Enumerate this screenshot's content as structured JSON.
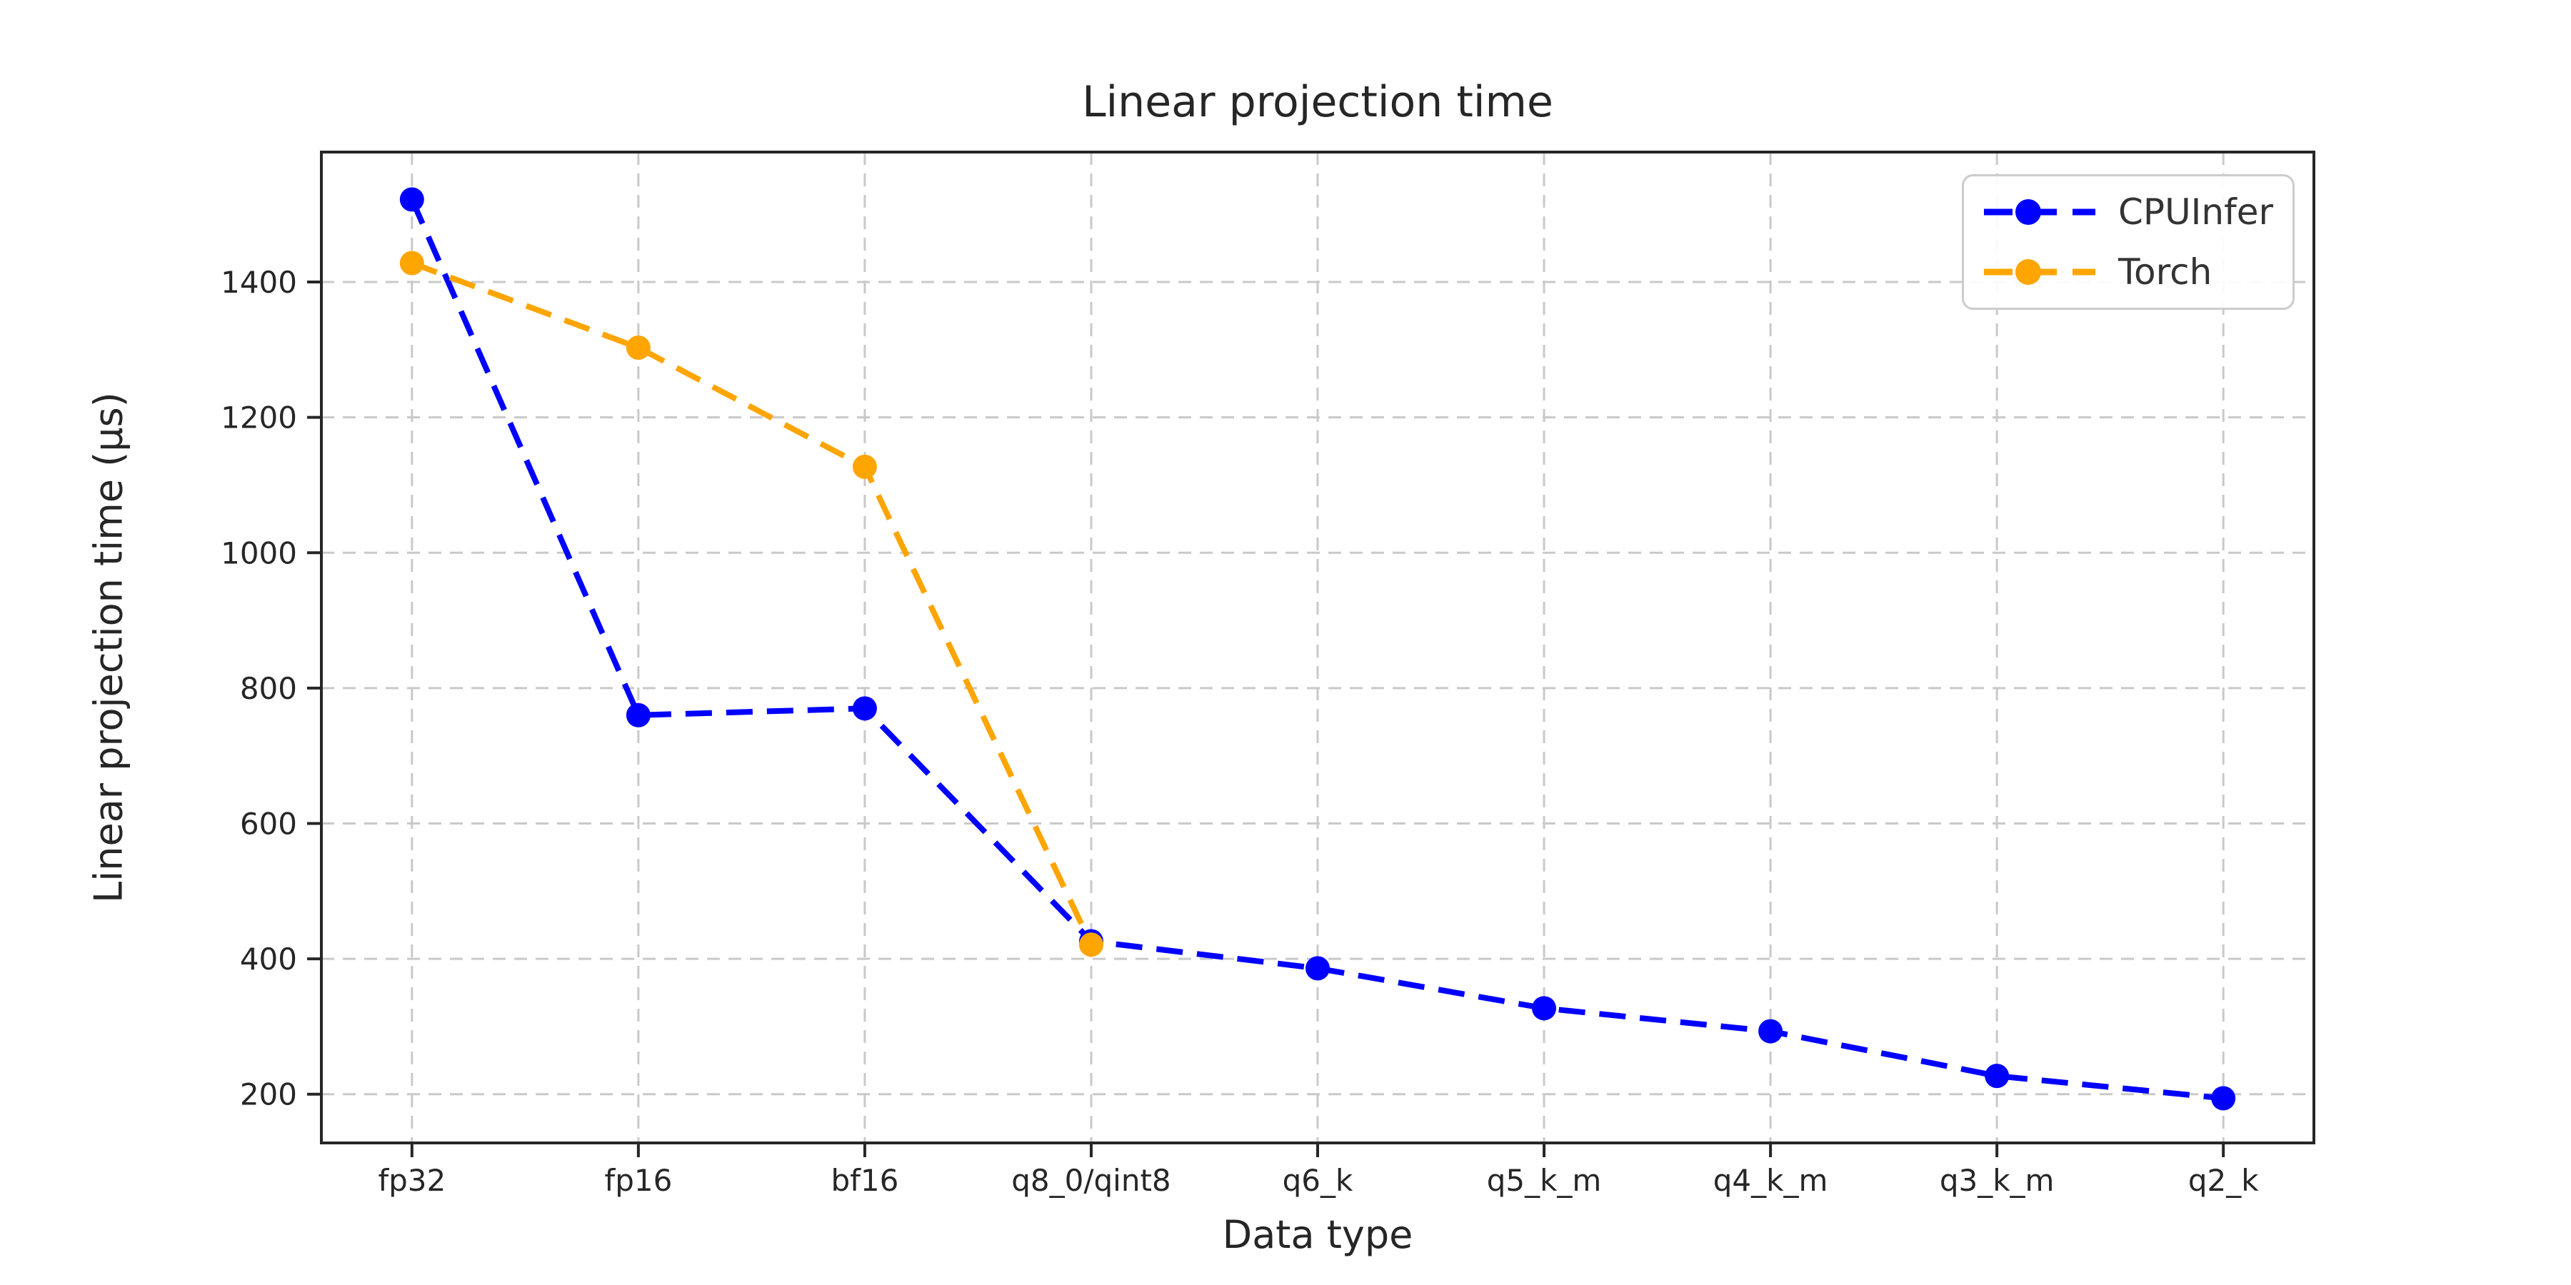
{
  "chart_data": {
    "type": "line",
    "title": "Linear projection time",
    "xlabel": "Data type",
    "ylabel": "Linear projection time (µs)",
    "categories": [
      "fp32",
      "fp16",
      "bf16",
      "q8_0/qint8",
      "q6_k",
      "q5_k_m",
      "q4_k_m",
      "q3_k_m",
      "q2_k"
    ],
    "series": [
      {
        "name": "CPUInfer",
        "color": "#0000ff",
        "values": [
          1522,
          760,
          770,
          426,
          386,
          327,
          293,
          227,
          194
        ]
      },
      {
        "name": "Torch",
        "color": "#ffa500",
        "values": [
          1428,
          1303,
          1127,
          421,
          null,
          null,
          null,
          null,
          null
        ]
      }
    ],
    "yticks": [
      200,
      400,
      600,
      800,
      1000,
      1200,
      1400
    ],
    "ylim": [
      128,
      1592
    ],
    "xlim": [
      -0.4,
      8.4
    ],
    "grid": true,
    "grid_style": "dashed",
    "line_style": "dashed",
    "marker": "circle",
    "legend_position": "upper right",
    "legend_labels": [
      "CPUInfer",
      "Torch"
    ]
  },
  "colors": {
    "background": "#ffffff",
    "grid": "#c9c9c9",
    "spine": "#262626",
    "tick_label": "#262626",
    "title_text": "#262626",
    "legend_text": "#333333",
    "legend_border": "#cccccc"
  }
}
